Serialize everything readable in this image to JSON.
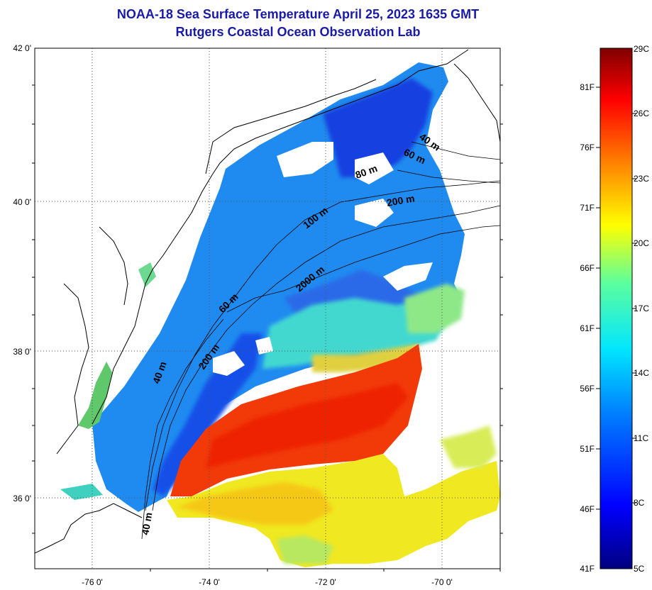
{
  "title_line1": "NOAA-18 Sea Surface Temperature April 25, 2023 1635 GMT",
  "title_line2": "Rutgers Coastal Ocean Observation Lab",
  "map": {
    "longitude_ticks": [
      "-76 0'",
      "-74 0'",
      "-72 0'",
      "-70 0'"
    ],
    "latitude_ticks": [
      "42 0'",
      "40 0'",
      "38 0'",
      "36 0'"
    ],
    "grid": "dotted",
    "no_data_color": "#ffffff",
    "coastline_color": "#000000"
  },
  "isobath_labels": [
    "40 m",
    "60 m",
    "80 m",
    "200 m",
    "100 m",
    "2000 m",
    "60 m",
    "200 m",
    "40 m",
    "40 m"
  ],
  "colorbar": {
    "fahrenheit_labels": [
      "81F",
      "76F",
      "71F",
      "66F",
      "61F",
      "56F",
      "51F",
      "46F",
      "41F"
    ],
    "celsius_labels": [
      "29C",
      "26C",
      "23C",
      "20C",
      "17C",
      "14C",
      "11C",
      "8C",
      "5C"
    ],
    "min_label": "5C",
    "max_label": "29C",
    "palette": [
      "#00007f",
      "#0000ff",
      "#0080ff",
      "#00e5ff",
      "#5dff9c",
      "#ffff00",
      "#ff8000",
      "#ff0000",
      "#800000"
    ]
  }
}
